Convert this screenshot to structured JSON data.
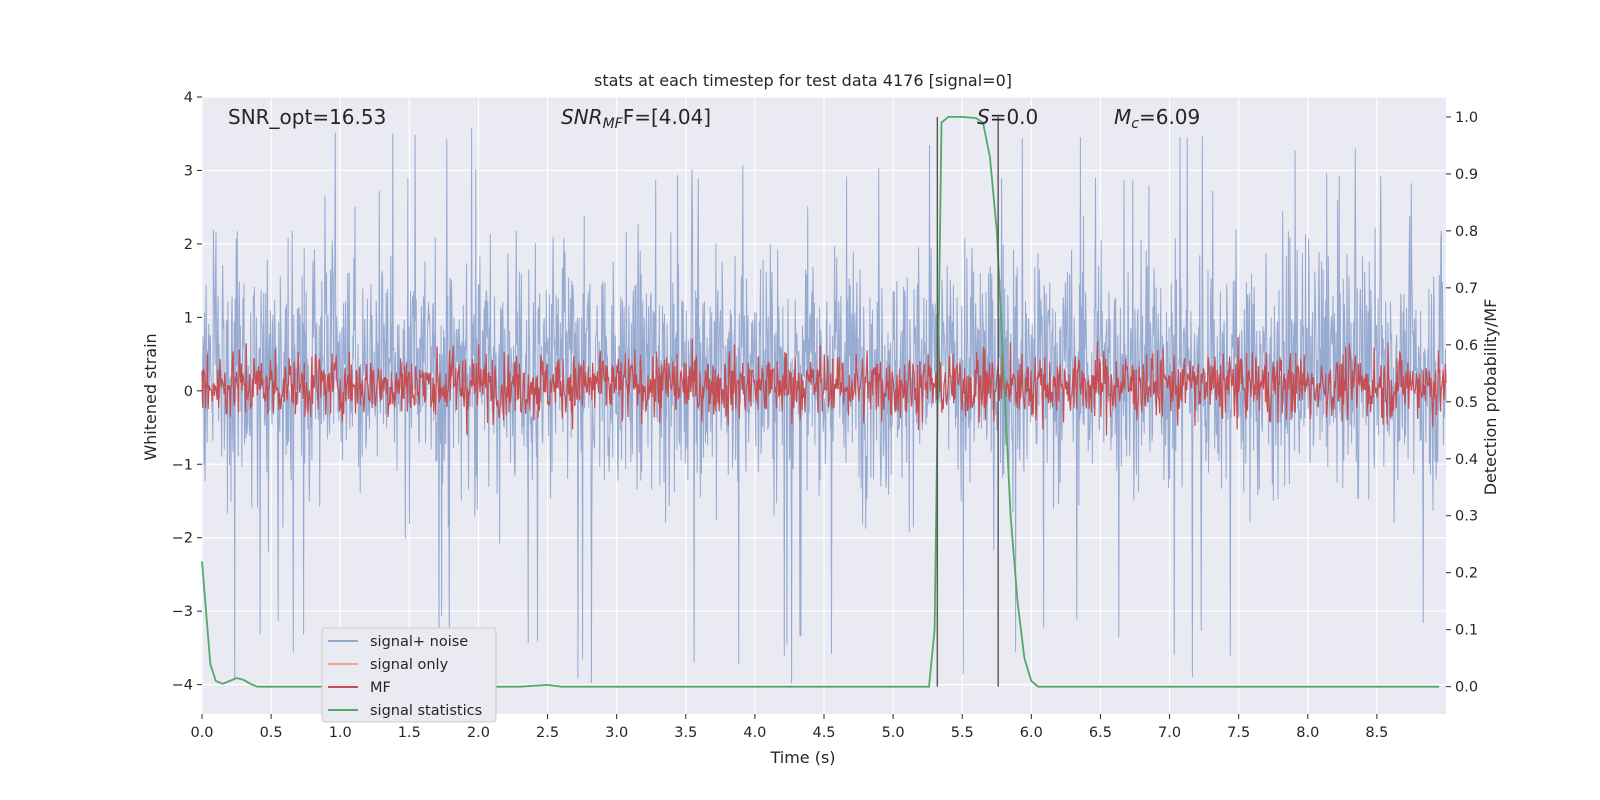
{
  "chart_data": {
    "type": "line",
    "title": "stats at each timestep for test data 4176 [signal=0]",
    "xlabel": "Time (s)",
    "ylabel": "Whitened strain",
    "y2label": "Detection probability/MF",
    "xlim": [
      0.0,
      9.0
    ],
    "ylim": [
      -4.4,
      4.0
    ],
    "y2lim": [
      -0.048,
      1.035
    ],
    "xticks": [
      0.0,
      0.5,
      1.0,
      1.5,
      2.0,
      2.5,
      3.0,
      3.5,
      4.0,
      4.5,
      5.0,
      5.5,
      6.0,
      6.5,
      7.0,
      7.5,
      8.0,
      8.5
    ],
    "xtick_labels": [
      "0.0",
      "0.5",
      "1.0",
      "1.5",
      "2.0",
      "2.5",
      "3.0",
      "3.5",
      "4.0",
      "4.5",
      "5.0",
      "5.5",
      "6.0",
      "6.5",
      "7.0",
      "7.5",
      "8.0",
      "8.5"
    ],
    "yticks": [
      4,
      3,
      2,
      1,
      0,
      -1,
      -2,
      -3,
      -4
    ],
    "ytick_labels": [
      "4",
      "3",
      "2",
      "1",
      "0",
      "−1",
      "−2",
      "−3",
      "−4"
    ],
    "y2ticks": [
      1.0,
      0.9,
      0.8,
      0.7,
      0.6,
      0.5,
      0.4,
      0.3,
      0.2,
      0.1,
      0.0
    ],
    "y2tick_labels": [
      "1.0",
      "0.9",
      "0.8",
      "0.7",
      "0.6",
      "0.5",
      "0.4",
      "0.3",
      "0.2",
      "0.1",
      "0.0"
    ],
    "annotations": {
      "snr_opt": "SNR_opt=16.53",
      "snr_mf_prefix": "SNR",
      "snr_mf_sub": "MF",
      "snr_mf_suffix": "F=[4.04]",
      "s_var": "S",
      "s_val": "=0.0",
      "mc_var": "M",
      "mc_sub": "c",
      "mc_val": "=6.09"
    },
    "vlines": [
      5.32,
      5.76
    ],
    "series": [
      {
        "name": "signal+ noise",
        "color": "#92a6cf",
        "kind": "noise",
        "typical_range": [
          -1.8,
          2.4
        ],
        "extreme_range": [
          -4.0,
          3.6
        ],
        "samples": 2400
      },
      {
        "name": "signal only",
        "color": "#eea98c",
        "kind": "flat",
        "values": []
      },
      {
        "name": "MF",
        "color": "#c44e52",
        "kind": "noise-secondary",
        "center": 0.53,
        "amplitude": 0.07,
        "samples": 1800
      },
      {
        "name": "signal statistics",
        "color": "#55a868",
        "kind": "line-secondary",
        "x": [
          0.0,
          0.06,
          0.1,
          0.15,
          0.2,
          0.25,
          0.3,
          0.35,
          0.4,
          0.5,
          1.0,
          1.5,
          2.0,
          2.3,
          2.5,
          2.6,
          2.8,
          3.0,
          4.0,
          5.0,
          5.26,
          5.3,
          5.35,
          5.4,
          5.5,
          5.6,
          5.65,
          5.7,
          5.75,
          5.8,
          5.85,
          5.9,
          5.95,
          6.0,
          6.05,
          6.2,
          7.0,
          8.0,
          8.95
        ],
        "y": [
          0.22,
          0.04,
          0.01,
          0.005,
          0.01,
          0.015,
          0.012,
          0.005,
          0.0,
          0.0,
          0.0,
          0.0,
          0.0,
          0.0,
          0.003,
          0.0,
          0.0,
          0.0,
          0.0,
          0.0,
          0.0,
          0.1,
          0.99,
          1.0,
          1.0,
          0.998,
          0.99,
          0.93,
          0.8,
          0.55,
          0.3,
          0.15,
          0.05,
          0.01,
          0.0,
          0.0,
          0.0,
          0.0,
          0.0
        ]
      }
    ],
    "legend": {
      "placement": "lower-left",
      "entries": [
        "signal+ noise",
        "signal only",
        "MF",
        "signal statistics"
      ]
    },
    "colors": {
      "plot_bg": "#eaeaf2",
      "grid": "#ffffff",
      "vline": "#555555"
    }
  }
}
